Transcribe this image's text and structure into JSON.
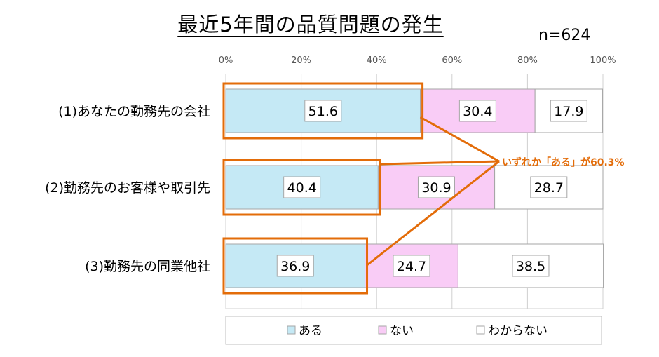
{
  "title": "最近5年間の品質問題の発生",
  "sample_size": "n=624",
  "annotation": "いずれか「ある」が60.3%",
  "colors": {
    "ある": "#C5E9F5",
    "ない": "#F9CCF6",
    "わからない": "#FFFFFF",
    "highlight": "#E36C09",
    "grid": "#D0D0D0"
  },
  "chart_data": {
    "type": "bar",
    "orientation": "horizontal",
    "stacked": "percent",
    "title": "最近5年間の品質問題の発生",
    "categories": [
      "(1)あなたの勤務先の会社",
      "(2)勤務先のお客様や取引先",
      "(3)勤務先の同業他社"
    ],
    "series": [
      {
        "name": "ある",
        "values": [
          51.6,
          40.4,
          36.9
        ]
      },
      {
        "name": "ない",
        "values": [
          30.4,
          30.9,
          24.7
        ]
      },
      {
        "name": "わからない",
        "values": [
          17.9,
          28.7,
          38.5
        ]
      }
    ],
    "x_ticks": [
      "0%",
      "20%",
      "40%",
      "60%",
      "80%",
      "100%"
    ],
    "xlim": [
      0,
      100
    ],
    "grid": true,
    "legend_position": "bottom"
  }
}
